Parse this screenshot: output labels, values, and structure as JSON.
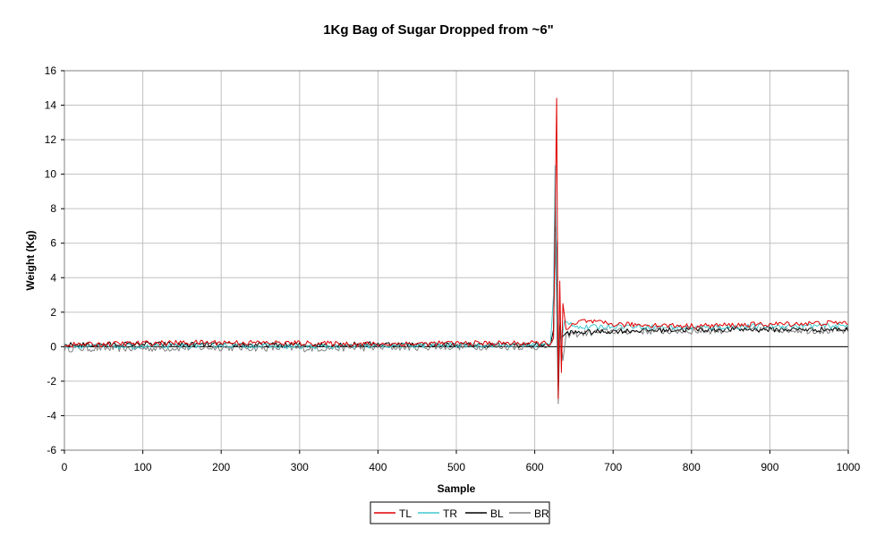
{
  "chart_data": {
    "type": "line",
    "title": "1Kg Bag of Sugar Dropped from ~6\"",
    "xlabel": "Sample",
    "ylabel": "Weight (Kg)",
    "xlim": [
      0,
      1000
    ],
    "ylim": [
      -6,
      16
    ],
    "xticks": [
      "0",
      "100",
      "200",
      "300",
      "400",
      "500",
      "600",
      "700",
      "800",
      "900",
      "1000"
    ],
    "yticks": [
      "-6",
      "-4",
      "-2",
      "0",
      "2",
      "4",
      "6",
      "8",
      "10",
      "12",
      "14",
      "16"
    ],
    "grid": true,
    "legend_position": "bottom-center",
    "series": [
      {
        "name": "TL",
        "color": "#e00000",
        "noise_amplitude": 0.15,
        "points": [
          [
            0,
            0.1
          ],
          [
            100,
            0.2
          ],
          [
            200,
            0.25
          ],
          [
            300,
            0.2
          ],
          [
            400,
            0.15
          ],
          [
            500,
            0.2
          ],
          [
            620,
            0.2
          ],
          [
            624,
            0.5
          ],
          [
            626,
            7.5
          ],
          [
            628,
            14.4
          ],
          [
            630,
            -3.0
          ],
          [
            632,
            3.8
          ],
          [
            634,
            -1.5
          ],
          [
            636,
            2.5
          ],
          [
            640,
            1.0
          ],
          [
            660,
            1.5
          ],
          [
            700,
            1.3
          ],
          [
            800,
            1.2
          ],
          [
            900,
            1.3
          ],
          [
            1000,
            1.4
          ]
        ]
      },
      {
        "name": "TR",
        "color": "#40c8d0",
        "noise_amplitude": 0.15,
        "points": [
          [
            0,
            0.05
          ],
          [
            100,
            0.0
          ],
          [
            200,
            0.1
          ],
          [
            300,
            0.0
          ],
          [
            400,
            0.05
          ],
          [
            500,
            0.1
          ],
          [
            620,
            0.1
          ],
          [
            624,
            3.0
          ],
          [
            626,
            10.5
          ],
          [
            628,
            4.0
          ],
          [
            630,
            -1.0
          ],
          [
            632,
            2.0
          ],
          [
            634,
            0.2
          ],
          [
            638,
            1.5
          ],
          [
            660,
            1.1
          ],
          [
            700,
            1.2
          ],
          [
            800,
            1.1
          ],
          [
            900,
            1.2
          ],
          [
            1000,
            1.2
          ]
        ]
      },
      {
        "name": "BL",
        "color": "#000000",
        "noise_amplitude": 0.15,
        "points": [
          [
            0,
            0.1
          ],
          [
            100,
            0.15
          ],
          [
            200,
            0.1
          ],
          [
            300,
            0.1
          ],
          [
            400,
            0.15
          ],
          [
            500,
            0.1
          ],
          [
            620,
            0.1
          ],
          [
            624,
            1.0
          ],
          [
            626,
            7.8
          ],
          [
            628,
            5.5
          ],
          [
            630,
            -2.5
          ],
          [
            632,
            1.5
          ],
          [
            634,
            0.5
          ],
          [
            640,
            0.8
          ],
          [
            700,
            0.9
          ],
          [
            800,
            1.0
          ],
          [
            900,
            1.0
          ],
          [
            1000,
            1.0
          ]
        ]
      },
      {
        "name": "BR",
        "color": "#808080",
        "noise_amplitude": 0.2,
        "points": [
          [
            0,
            -0.1
          ],
          [
            100,
            -0.1
          ],
          [
            200,
            -0.05
          ],
          [
            300,
            -0.1
          ],
          [
            400,
            -0.05
          ],
          [
            500,
            0.0
          ],
          [
            620,
            0.0
          ],
          [
            624,
            0.5
          ],
          [
            626,
            6.5
          ],
          [
            628,
            2.0
          ],
          [
            630,
            -3.3
          ],
          [
            632,
            1.0
          ],
          [
            636,
            -0.8
          ],
          [
            640,
            0.7
          ],
          [
            700,
            0.9
          ],
          [
            800,
            0.9
          ],
          [
            900,
            1.0
          ],
          [
            1000,
            0.9
          ]
        ]
      }
    ]
  }
}
